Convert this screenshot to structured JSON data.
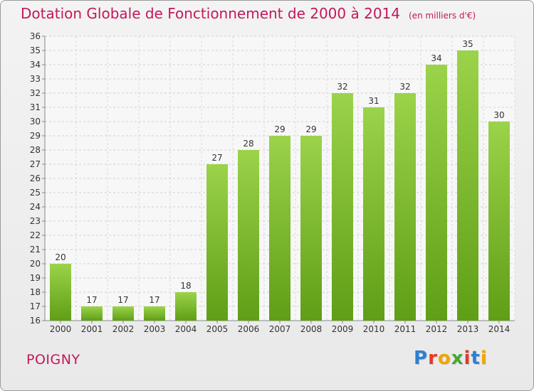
{
  "header": {
    "title": "Dotation Globale de Fonctionnement de 2000 à 2014",
    "subtitle": "(en milliers d'€)"
  },
  "footer": {
    "commune": "POIGNY",
    "logo_text": "Proxiti"
  },
  "colors": {
    "title": "#c2185b",
    "bar_top": "#9bd34a",
    "bar_bottom": "#5f9e16",
    "logo_letters": [
      "#2f7fd1",
      "#e23a2a",
      "#f0a500",
      "#46a834",
      "#e23a2a",
      "#2f7fd1",
      "#f0a500"
    ]
  },
  "chart_data": {
    "type": "bar",
    "categories": [
      "2000",
      "2001",
      "2002",
      "2003",
      "2004",
      "2005",
      "2006",
      "2007",
      "2008",
      "2009",
      "2010",
      "2011",
      "2012",
      "2013",
      "2014"
    ],
    "values": [
      20,
      17,
      17,
      17,
      18,
      27,
      28,
      29,
      29,
      32,
      31,
      32,
      34,
      35,
      30
    ],
    "ylim": [
      16,
      36
    ],
    "yticks": [
      16,
      17,
      18,
      19,
      20,
      21,
      22,
      23,
      24,
      25,
      26,
      27,
      28,
      29,
      30,
      31,
      32,
      33,
      34,
      35,
      36
    ],
    "grid": true,
    "data_labels": true
  }
}
